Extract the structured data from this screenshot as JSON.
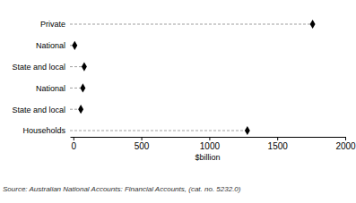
{
  "chart_data": {
    "type": "dot",
    "orientation": "horizontal",
    "categories": [
      "Private",
      "National",
      "State and local",
      "National",
      "State and local",
      "Households"
    ],
    "values": [
      1760,
      10,
      80,
      70,
      55,
      1280
    ],
    "color": "#000000",
    "marker": "diamond",
    "line_style": "dashed",
    "xlim": [
      -25,
      2000
    ],
    "xticks": [
      0,
      500,
      1000,
      1500,
      2000
    ],
    "xlabel": "$billion",
    "source": "Source: Australian National Accounts: Financial Accounts, (cat. no. 5232.0)"
  }
}
